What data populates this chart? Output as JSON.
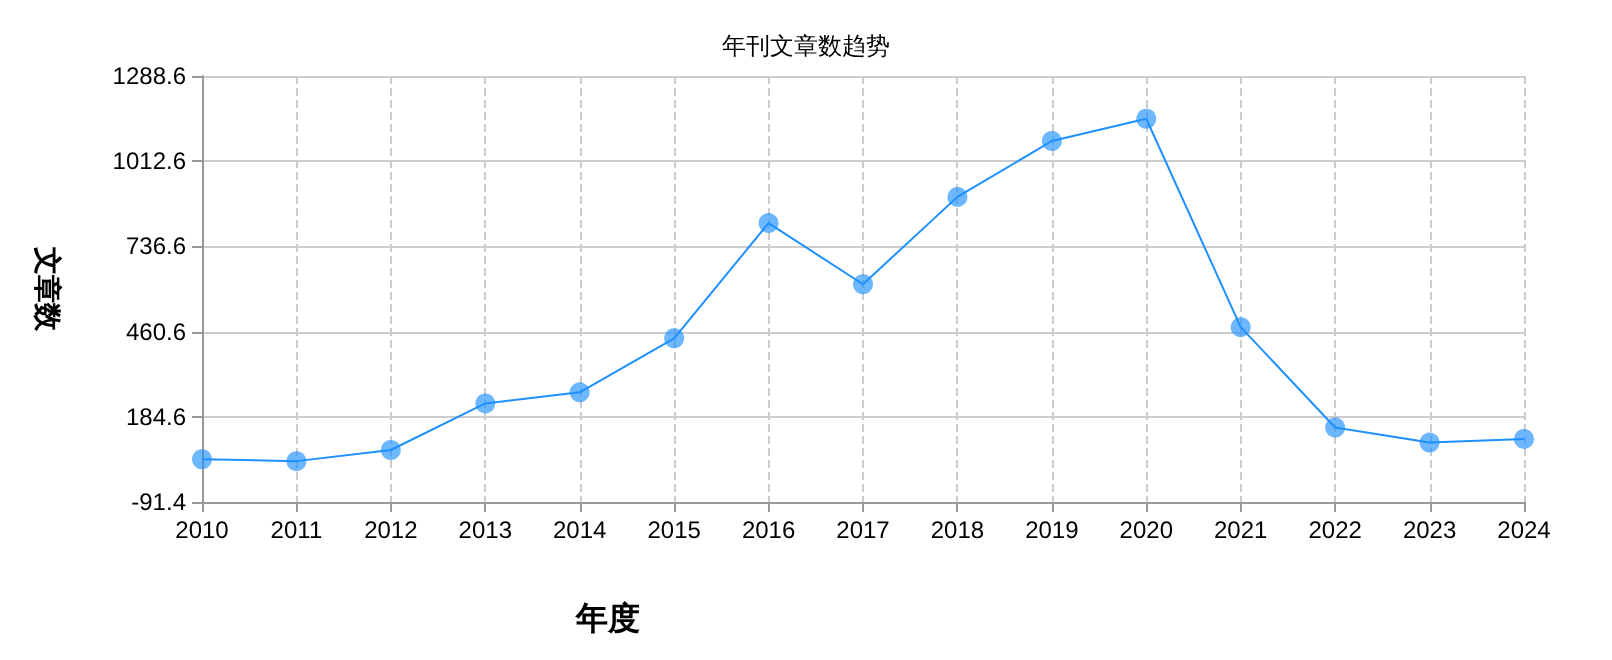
{
  "chart_data": {
    "type": "line",
    "title": "年刊文章数趋势",
    "xlabel": "年度",
    "ylabel": "文章数",
    "categories": [
      "2010",
      "2011",
      "2012",
      "2013",
      "2014",
      "2015",
      "2016",
      "2017",
      "2018",
      "2019",
      "2020",
      "2021",
      "2022",
      "2023",
      "2024"
    ],
    "series": [
      {
        "color": "#1e90ff",
        "values": [
          47,
          41,
          77,
          228,
          264,
          439,
          812,
          614,
          897,
          1078,
          1150,
          475,
          150,
          101,
          113
        ]
      }
    ],
    "ylim": [
      -91.4,
      1288.6
    ],
    "yticks": [
      -91.4,
      184.6,
      460.6,
      736.6,
      1012.6,
      1288.6
    ],
    "grid": true,
    "marker": "circle",
    "line_style": "solid"
  }
}
